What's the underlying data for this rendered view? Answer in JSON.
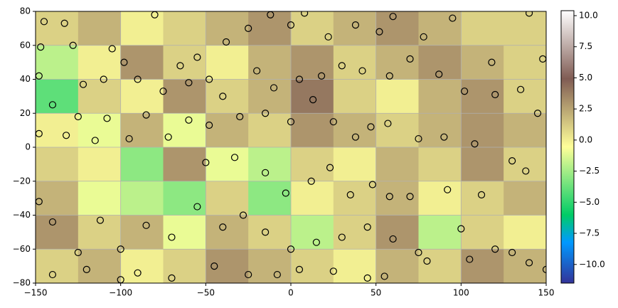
{
  "chart_data": {
    "type": "heatmap",
    "xlim": [
      -150,
      150
    ],
    "ylim": [
      -80,
      80
    ],
    "xticks": [
      {
        "value": -150,
        "label": "−150"
      },
      {
        "value": -100,
        "label": "−100"
      },
      {
        "value": -50,
        "label": "−50"
      },
      0,
      50,
      100,
      150
    ],
    "yticks": [
      {
        "value": -80,
        "label": "−80"
      },
      {
        "value": -60,
        "label": "−60"
      },
      {
        "value": -40,
        "label": "−40"
      },
      {
        "value": -20,
        "label": "−20"
      },
      0,
      20,
      40,
      60,
      80
    ],
    "grid": true,
    "z": [
      [
        1,
        2,
        0,
        1,
        2,
        3,
        1,
        2,
        3,
        2,
        1,
        1
      ],
      [
        -2,
        0,
        3,
        1,
        0,
        2,
        3,
        1,
        2,
        3,
        2,
        1
      ],
      [
        -4,
        1,
        0,
        3,
        1,
        2,
        4,
        1,
        0,
        2,
        3,
        1
      ],
      [
        0,
        -1,
        2,
        -1,
        2,
        1,
        3,
        2,
        1,
        2,
        3,
        2
      ],
      [
        1,
        0,
        -3,
        3,
        -1,
        -2,
        1,
        0,
        2,
        1,
        3,
        1
      ],
      [
        2,
        -1,
        -2,
        -3,
        1,
        -3,
        0,
        1,
        2,
        0,
        1,
        2
      ],
      [
        3,
        1,
        2,
        -1,
        2,
        1,
        -2,
        1,
        3,
        -2,
        1,
        0
      ],
      [
        1,
        2,
        0,
        1,
        3,
        2,
        1,
        0,
        2,
        1,
        3,
        2
      ]
    ],
    "clim": [
      -11.5,
      10.4
    ],
    "cticks": [
      {
        "value": -10,
        "label": "−10.0"
      },
      {
        "value": -7.5,
        "label": "−7.5"
      },
      {
        "value": -5,
        "label": "−5.0"
      },
      {
        "value": -2.5,
        "label": "−2.5"
      },
      {
        "value": 0,
        "label": "0.0"
      },
      2.5,
      {
        "value": 5,
        "label": "5.0"
      },
      7.5,
      {
        "value": 10,
        "label": "10.0"
      }
    ],
    "colormap": {
      "stops": [
        0,
        0.15,
        0.25,
        0.5,
        0.75,
        1
      ],
      "colors": [
        "#333399",
        "#0099ff",
        "#00cc66",
        "#ffff99",
        "#805c54",
        "#ffffff"
      ]
    },
    "marker_color": "#000000",
    "x": [
      -145,
      -133,
      -147,
      -128,
      -105,
      -98,
      -80,
      -65,
      -55,
      -38,
      -25,
      -12,
      0,
      8,
      22,
      38,
      52,
      60,
      78,
      95,
      118,
      140,
      148,
      -148,
      -122,
      -110,
      -90,
      -75,
      -60,
      -48,
      -40,
      -20,
      -10,
      5,
      18,
      30,
      42,
      58,
      70,
      87,
      102,
      120,
      135,
      -140,
      -125,
      -108,
      -85,
      -60,
      -48,
      -30,
      -15,
      0,
      13,
      25,
      38,
      47,
      57,
      75,
      90,
      108,
      130,
      145,
      -148,
      -132,
      -115,
      -95,
      -72,
      -50,
      -33,
      -15,
      -3,
      12,
      23,
      35,
      48,
      58,
      70,
      92,
      112,
      138,
      -148,
      -140,
      -125,
      -112,
      -100,
      -85,
      -70,
      -55,
      -40,
      -28,
      -15,
      0,
      15,
      30,
      45,
      60,
      75,
      100,
      120,
      140,
      -140,
      -120,
      -100,
      -90,
      -70,
      -45,
      -25,
      -8,
      5,
      25,
      45,
      55,
      80,
      105,
      130,
      150
    ],
    "y": [
      74,
      73,
      59,
      60,
      58,
      50,
      78,
      48,
      53,
      62,
      70,
      78,
      72,
      79,
      65,
      72,
      68,
      77,
      65,
      76,
      50,
      79,
      52,
      42,
      37,
      40,
      40,
      33,
      38,
      40,
      30,
      45,
      35,
      40,
      42,
      48,
      45,
      42,
      52,
      43,
      33,
      31,
      34,
      25,
      18,
      17,
      19,
      16,
      13,
      18,
      20,
      15,
      28,
      15,
      6,
      12,
      14,
      5,
      6,
      2,
      -8,
      20,
      8,
      7,
      4,
      5,
      6,
      -9,
      -6,
      -15,
      -27,
      -20,
      -12,
      -28,
      -22,
      -29,
      -29,
      -25,
      -28,
      -14,
      -32,
      -44,
      -62,
      -43,
      -60,
      -46,
      -53,
      -35,
      -47,
      -40,
      -50,
      -60,
      -56,
      -53,
      -47,
      -54,
      -62,
      -48,
      -60,
      -68,
      -75,
      -72,
      -78,
      -74,
      -77,
      -70,
      -75,
      -75,
      -72,
      -73,
      -77,
      -76,
      -67,
      -66,
      -62,
      -72
    ]
  }
}
